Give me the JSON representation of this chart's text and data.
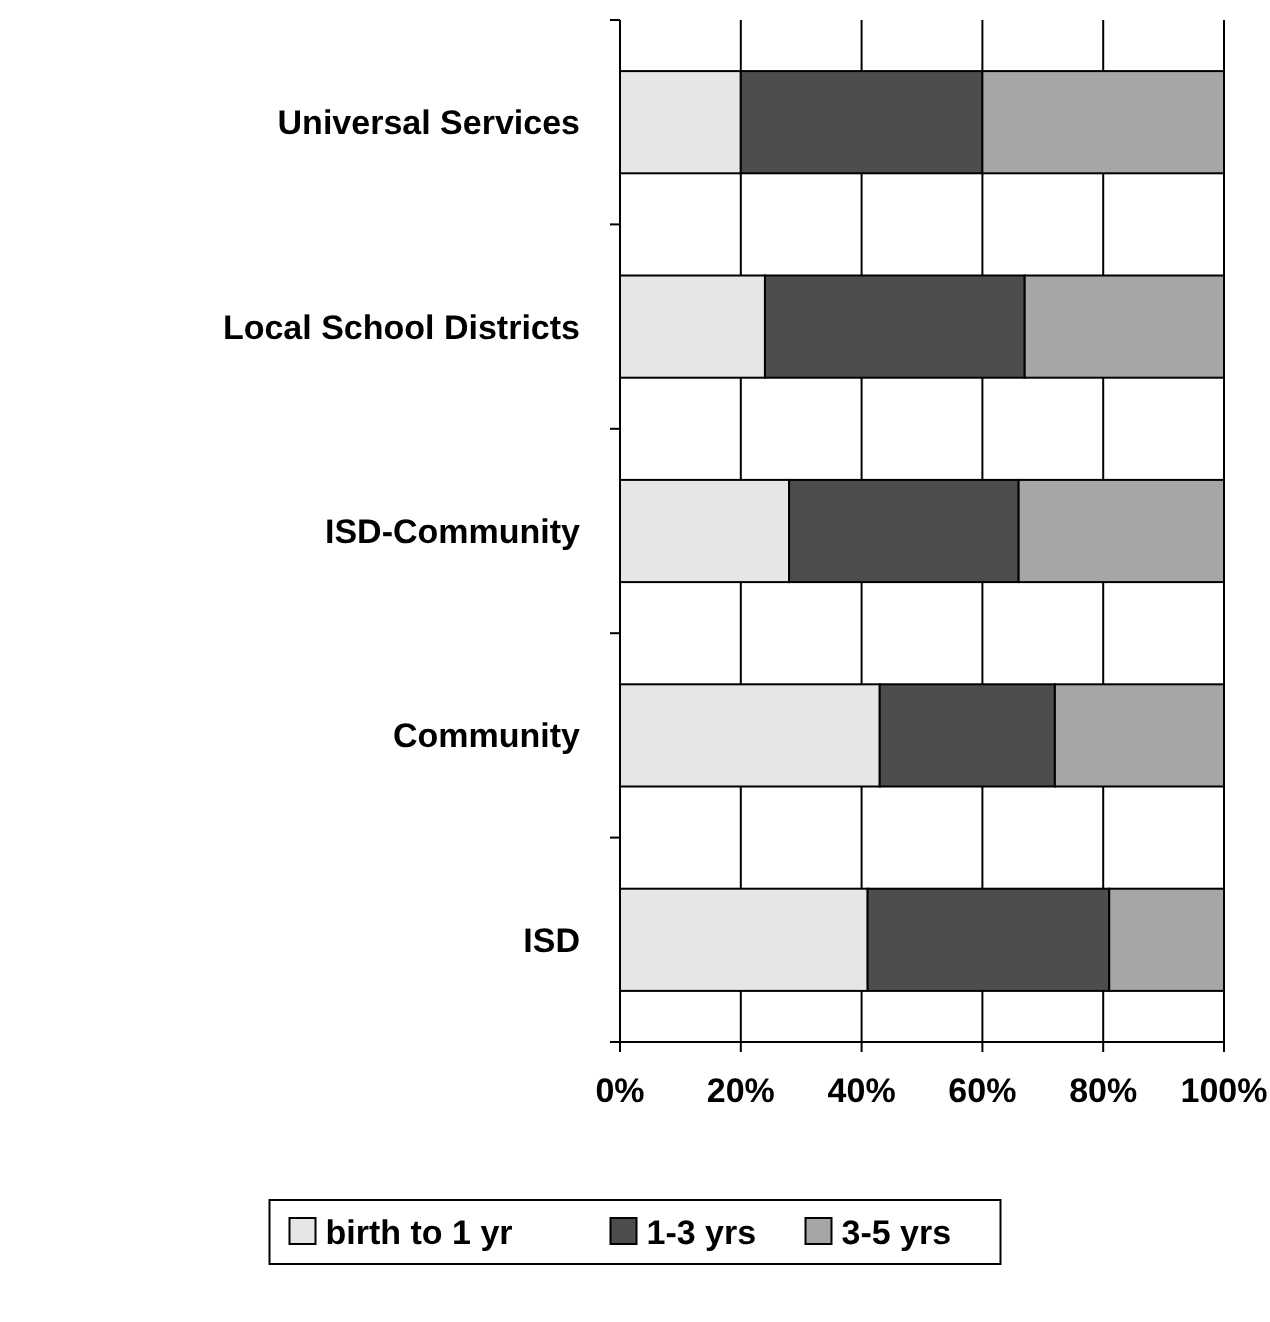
{
  "chart_data": {
    "type": "bar",
    "orientation": "horizontal",
    "stacked": true,
    "categories": [
      "Universal Services",
      "Local School Districts",
      "ISD-Community",
      "Community",
      "ISD"
    ],
    "series": [
      {
        "name": "birth to 1 yr",
        "color": "#e6e6e6",
        "values": [
          20,
          24,
          28,
          43,
          41
        ]
      },
      {
        "name": "1-3 yrs",
        "color": "#4d4d4d",
        "values": [
          40,
          43,
          38,
          29,
          40
        ]
      },
      {
        "name": "3-5 yrs",
        "color": "#a6a6a6",
        "values": [
          40,
          33,
          34,
          28,
          19
        ]
      }
    ],
    "xlim": [
      0,
      100
    ],
    "xticks": [
      {
        "value": 0,
        "label": "0%"
      },
      {
        "value": 20,
        "label": "20%"
      },
      {
        "value": 40,
        "label": "40%"
      },
      {
        "value": 60,
        "label": "60%"
      },
      {
        "value": 80,
        "label": "80%"
      },
      {
        "value": 100,
        "label": "100%"
      }
    ],
    "grid": "x",
    "legend": "bottom"
  }
}
